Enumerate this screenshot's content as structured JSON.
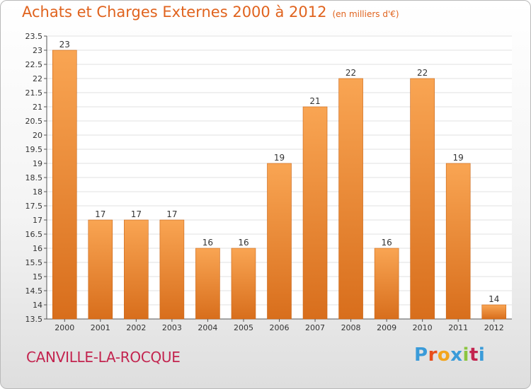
{
  "header": {
    "title": "Achats et Charges Externes 2000 à 2012",
    "unit": "(en milliers d'€)"
  },
  "footer": {
    "location": "CANVILLE-LA-ROCQUE",
    "brand": "Proxiti",
    "brand_colors": [
      "#3a9bd9",
      "#e84e1b",
      "#f3a51c",
      "#3a9bd9",
      "#8bc53f",
      "#c3244f",
      "#3a9bd9"
    ]
  },
  "chart_data": {
    "type": "bar",
    "categories": [
      "2000",
      "2001",
      "2002",
      "2003",
      "2004",
      "2005",
      "2006",
      "2007",
      "2008",
      "2009",
      "2010",
      "2011",
      "2012"
    ],
    "values": [
      23,
      17,
      17,
      17,
      16,
      16,
      19,
      21,
      22,
      16,
      22,
      19,
      14
    ],
    "ylim": [
      13.5,
      23.5
    ],
    "yticks": [
      13.5,
      14,
      14.5,
      15,
      15.5,
      16,
      16.5,
      17,
      17.5,
      18,
      18.5,
      19,
      19.5,
      20,
      20.5,
      21,
      21.5,
      22,
      22.5,
      23,
      23.5
    ],
    "grid": true,
    "bar_color": "#f0902e",
    "title": "Achats et Charges Externes 2000 à 2012",
    "xlabel": "",
    "ylabel": ""
  }
}
